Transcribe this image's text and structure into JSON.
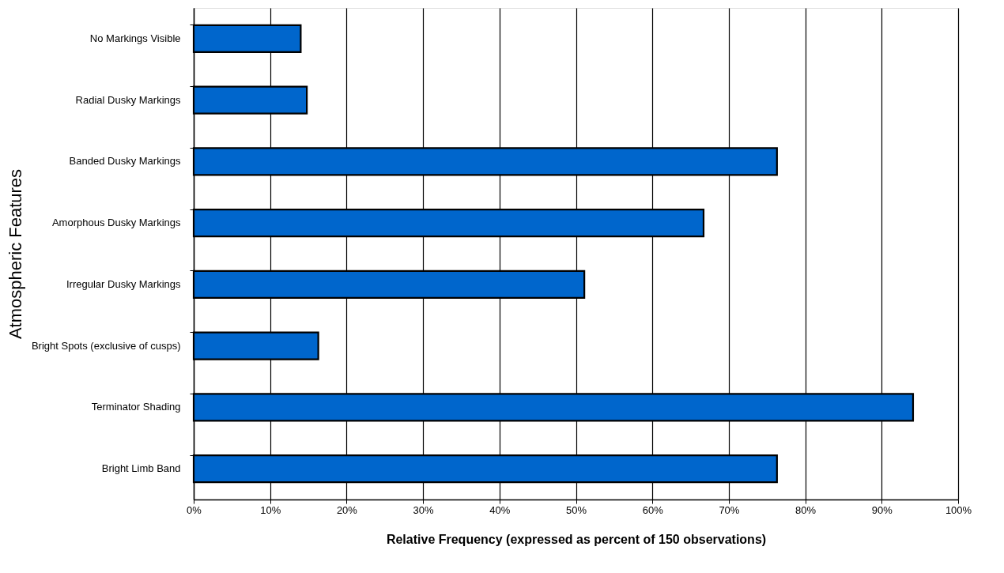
{
  "chart_data": {
    "type": "bar",
    "orientation": "horizontal",
    "categories": [
      "No Markings Visible",
      "Radial Dusky Markings",
      "Banded Dusky Markings",
      "Amorphous Dusky Markings",
      "Irregular Dusky Markings",
      "Bright Spots (exclusive of cusps)",
      "Terminator Shading",
      "Bright Limb Band"
    ],
    "values": [
      14.0,
      14.8,
      76.3,
      66.7,
      51.1,
      16.3,
      94.1,
      76.3
    ],
    "color": "#0066cc",
    "xlabel": "Relative Frequency (expressed as percent of 150 observations)",
    "ylabel": "Atmospheric Features",
    "xlim": [
      0,
      100
    ],
    "xticks": [
      {
        "value": 0,
        "label": "0%"
      },
      {
        "value": 10,
        "label": "10%"
      },
      {
        "value": 20,
        "label": "20%"
      },
      {
        "value": 30,
        "label": "30%"
      },
      {
        "value": 40,
        "label": "40%"
      },
      {
        "value": 50,
        "label": "50%"
      },
      {
        "value": 60,
        "label": "60%"
      },
      {
        "value": 70,
        "label": "70%"
      },
      {
        "value": 80,
        "label": "80%"
      },
      {
        "value": 90,
        "label": "90%"
      },
      {
        "value": 100,
        "label": "100%"
      }
    ],
    "grid": "x"
  }
}
